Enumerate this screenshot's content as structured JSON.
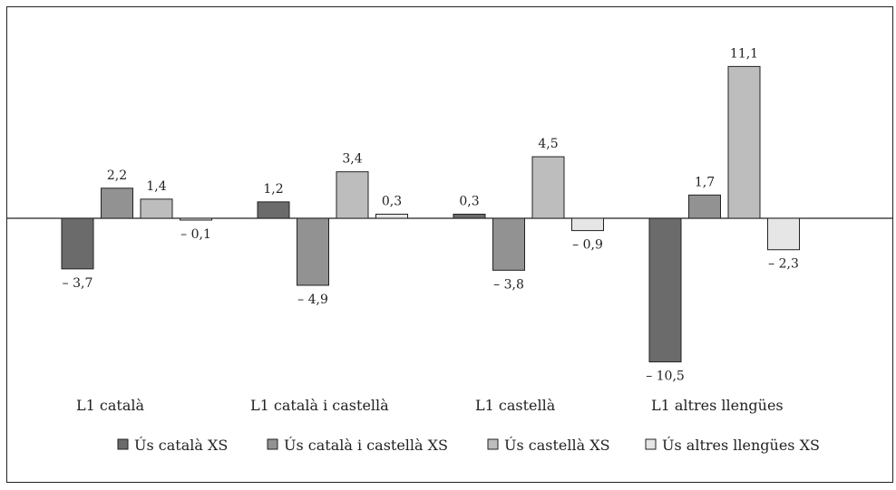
{
  "chart_data": {
    "type": "bar",
    "categories": [
      "L1 català",
      "L1 català i castellà",
      "L1 castellà",
      "L1 altres llengües"
    ],
    "series": [
      {
        "name": "Ús català XS",
        "color": "#6b6b6b",
        "values": [
          -3.7,
          1.2,
          0.3,
          -10.5
        ],
        "labels": [
          "– 3,7",
          "1,2",
          "0,3",
          "– 10,5"
        ]
      },
      {
        "name": "Ús català i castellà XS",
        "color": "#929292",
        "values": [
          2.2,
          -4.9,
          -3.8,
          1.7
        ],
        "labels": [
          "2,2",
          "– 4,9",
          "– 3,8",
          "1,7"
        ]
      },
      {
        "name": "Ús castellà XS",
        "color": "#bdbdbd",
        "values": [
          1.4,
          3.4,
          4.5,
          11.1
        ],
        "labels": [
          "1,4",
          "3,4",
          "4,5",
          "11,1"
        ]
      },
      {
        "name": "Ús altres llengües XS",
        "color": "#e6e6e6",
        "values": [
          -0.1,
          0.3,
          -0.9,
          -2.3
        ],
        "labels": [
          "– 0,1",
          "0,3",
          "– 0,9",
          "– 2,3"
        ]
      }
    ],
    "ylim": [
      -12,
      12
    ],
    "grid": false,
    "legend_position": "bottom"
  }
}
